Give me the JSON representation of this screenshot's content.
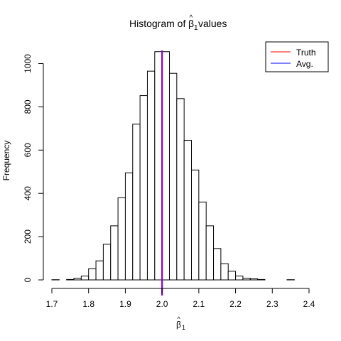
{
  "chart_data": {
    "type": "bar",
    "title": {
      "prefix": "Histogram of ",
      "symbol": "β",
      "hat": "^",
      "subscript": "1",
      "suffix": " values"
    },
    "xlabel": {
      "symbol": "β",
      "hat": "^",
      "subscript": "1"
    },
    "ylabel": "Frequency",
    "xlim": [
      1.7,
      2.4
    ],
    "ylim": [
      0,
      1060
    ],
    "x_ticks": [
      {
        "value": 1.7,
        "label": "1.7"
      },
      {
        "value": 1.8,
        "label": "1.8"
      },
      {
        "value": 1.9,
        "label": "1.9"
      },
      {
        "value": 2.0,
        "label": "2.0"
      },
      {
        "value": 2.1,
        "label": "2.1"
      },
      {
        "value": 2.2,
        "label": "2.2"
      },
      {
        "value": 2.3,
        "label": "2.3"
      },
      {
        "value": 2.4,
        "label": "2.4"
      }
    ],
    "y_ticks": [
      {
        "value": 0,
        "label": "0"
      },
      {
        "value": 200,
        "label": "200"
      },
      {
        "value": 400,
        "label": "400"
      },
      {
        "value": 600,
        "label": "600"
      },
      {
        "value": 800,
        "label": "800"
      },
      {
        "value": 1000,
        "label": "1000"
      }
    ],
    "bin_width": 0.02,
    "bins_start": [
      1.7,
      1.72,
      1.74,
      1.76,
      1.78,
      1.8,
      1.82,
      1.84,
      1.86,
      1.88,
      1.9,
      1.92,
      1.94,
      1.96,
      1.98,
      2.0,
      2.02,
      2.04,
      2.06,
      2.08,
      2.1,
      2.12,
      2.14,
      2.16,
      2.18,
      2.2,
      2.22,
      2.24,
      2.26,
      2.28,
      2.3,
      2.32,
      2.34,
      2.36,
      2.38
    ],
    "counts": [
      1,
      0,
      2,
      8,
      18,
      52,
      88,
      165,
      250,
      380,
      495,
      720,
      852,
      965,
      1055,
      1055,
      955,
      838,
      645,
      508,
      360,
      250,
      145,
      75,
      40,
      18,
      8,
      5,
      2,
      0,
      0,
      0,
      1,
      0,
      0
    ],
    "vlines": [
      {
        "name": "Truth",
        "x": 2.0,
        "color": "#ff0000"
      },
      {
        "name": "Avg.",
        "x": 2.0,
        "color": "#0000ff"
      }
    ],
    "overlap_color": "#8b00c8",
    "grid": false,
    "legend": {
      "position": "top-right",
      "entries": [
        {
          "label": "Truth",
          "color": "#ff0000"
        },
        {
          "label": "Avg.",
          "color": "#0000ff"
        }
      ]
    }
  }
}
